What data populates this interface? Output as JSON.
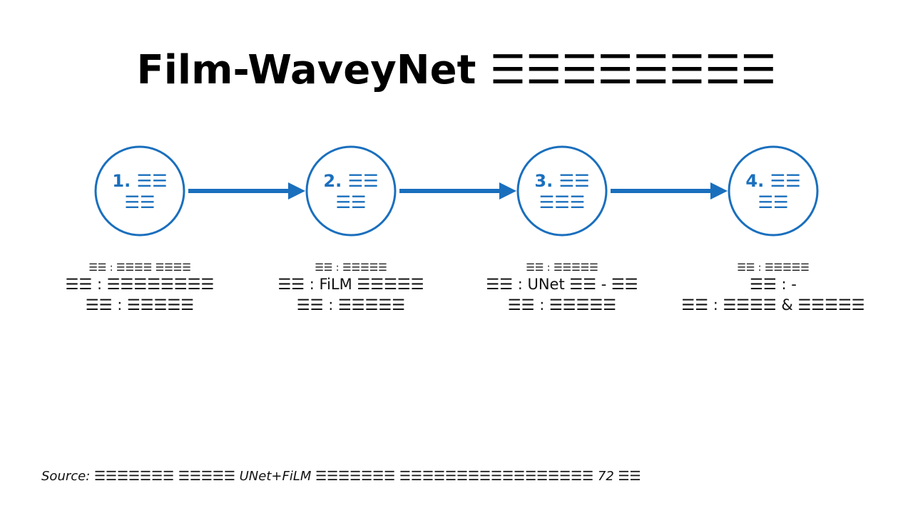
{
  "title": "Film-WaveyNet ☰☰☰☰☰☰☰☰",
  "steps": [
    {
      "heading": [
        "1. ☰☰",
        "☰☰"
      ],
      "details": [
        "☰☰ : ☰☰☰☰ ☰☰☰☰",
        "☰☰ : ☰☰☰☰☰☰☰☰",
        "☰☰ : ☰☰☰☰☰"
      ]
    },
    {
      "heading": [
        "2. ☰☰",
        "☰☰"
      ],
      "details": [
        "☰☰ : ☰☰☰☰☰",
        "☰☰ : FiLM ☰☰☰☰☰",
        "☰☰ : ☰☰☰☰☰"
      ]
    },
    {
      "heading": [
        "3. ☰☰",
        "☰☰☰"
      ],
      "details": [
        "☰☰ : ☰☰☰☰☰",
        "☰☰ : UNet ☰☰ - ☰☰",
        "☰☰ : ☰☰☰☰☰"
      ]
    },
    {
      "heading": [
        "4. ☰☰",
        "☰☰"
      ],
      "details": [
        "☰☰ : ☰☰☰☰☰",
        "☰☰ : -",
        "☰☰ : ☰☰☰☰ & ☰☰☰☰☰"
      ]
    }
  ],
  "source": "Source: ☰☰☰☰☰☰☰ ☰☰☰☰☰ UNet+FiLM ☰☰☰☰☰☰☰ ☰☰☰☰☰☰☰☰☰☰☰☰☰☰☰☰☰ 72 ☰☰"
}
